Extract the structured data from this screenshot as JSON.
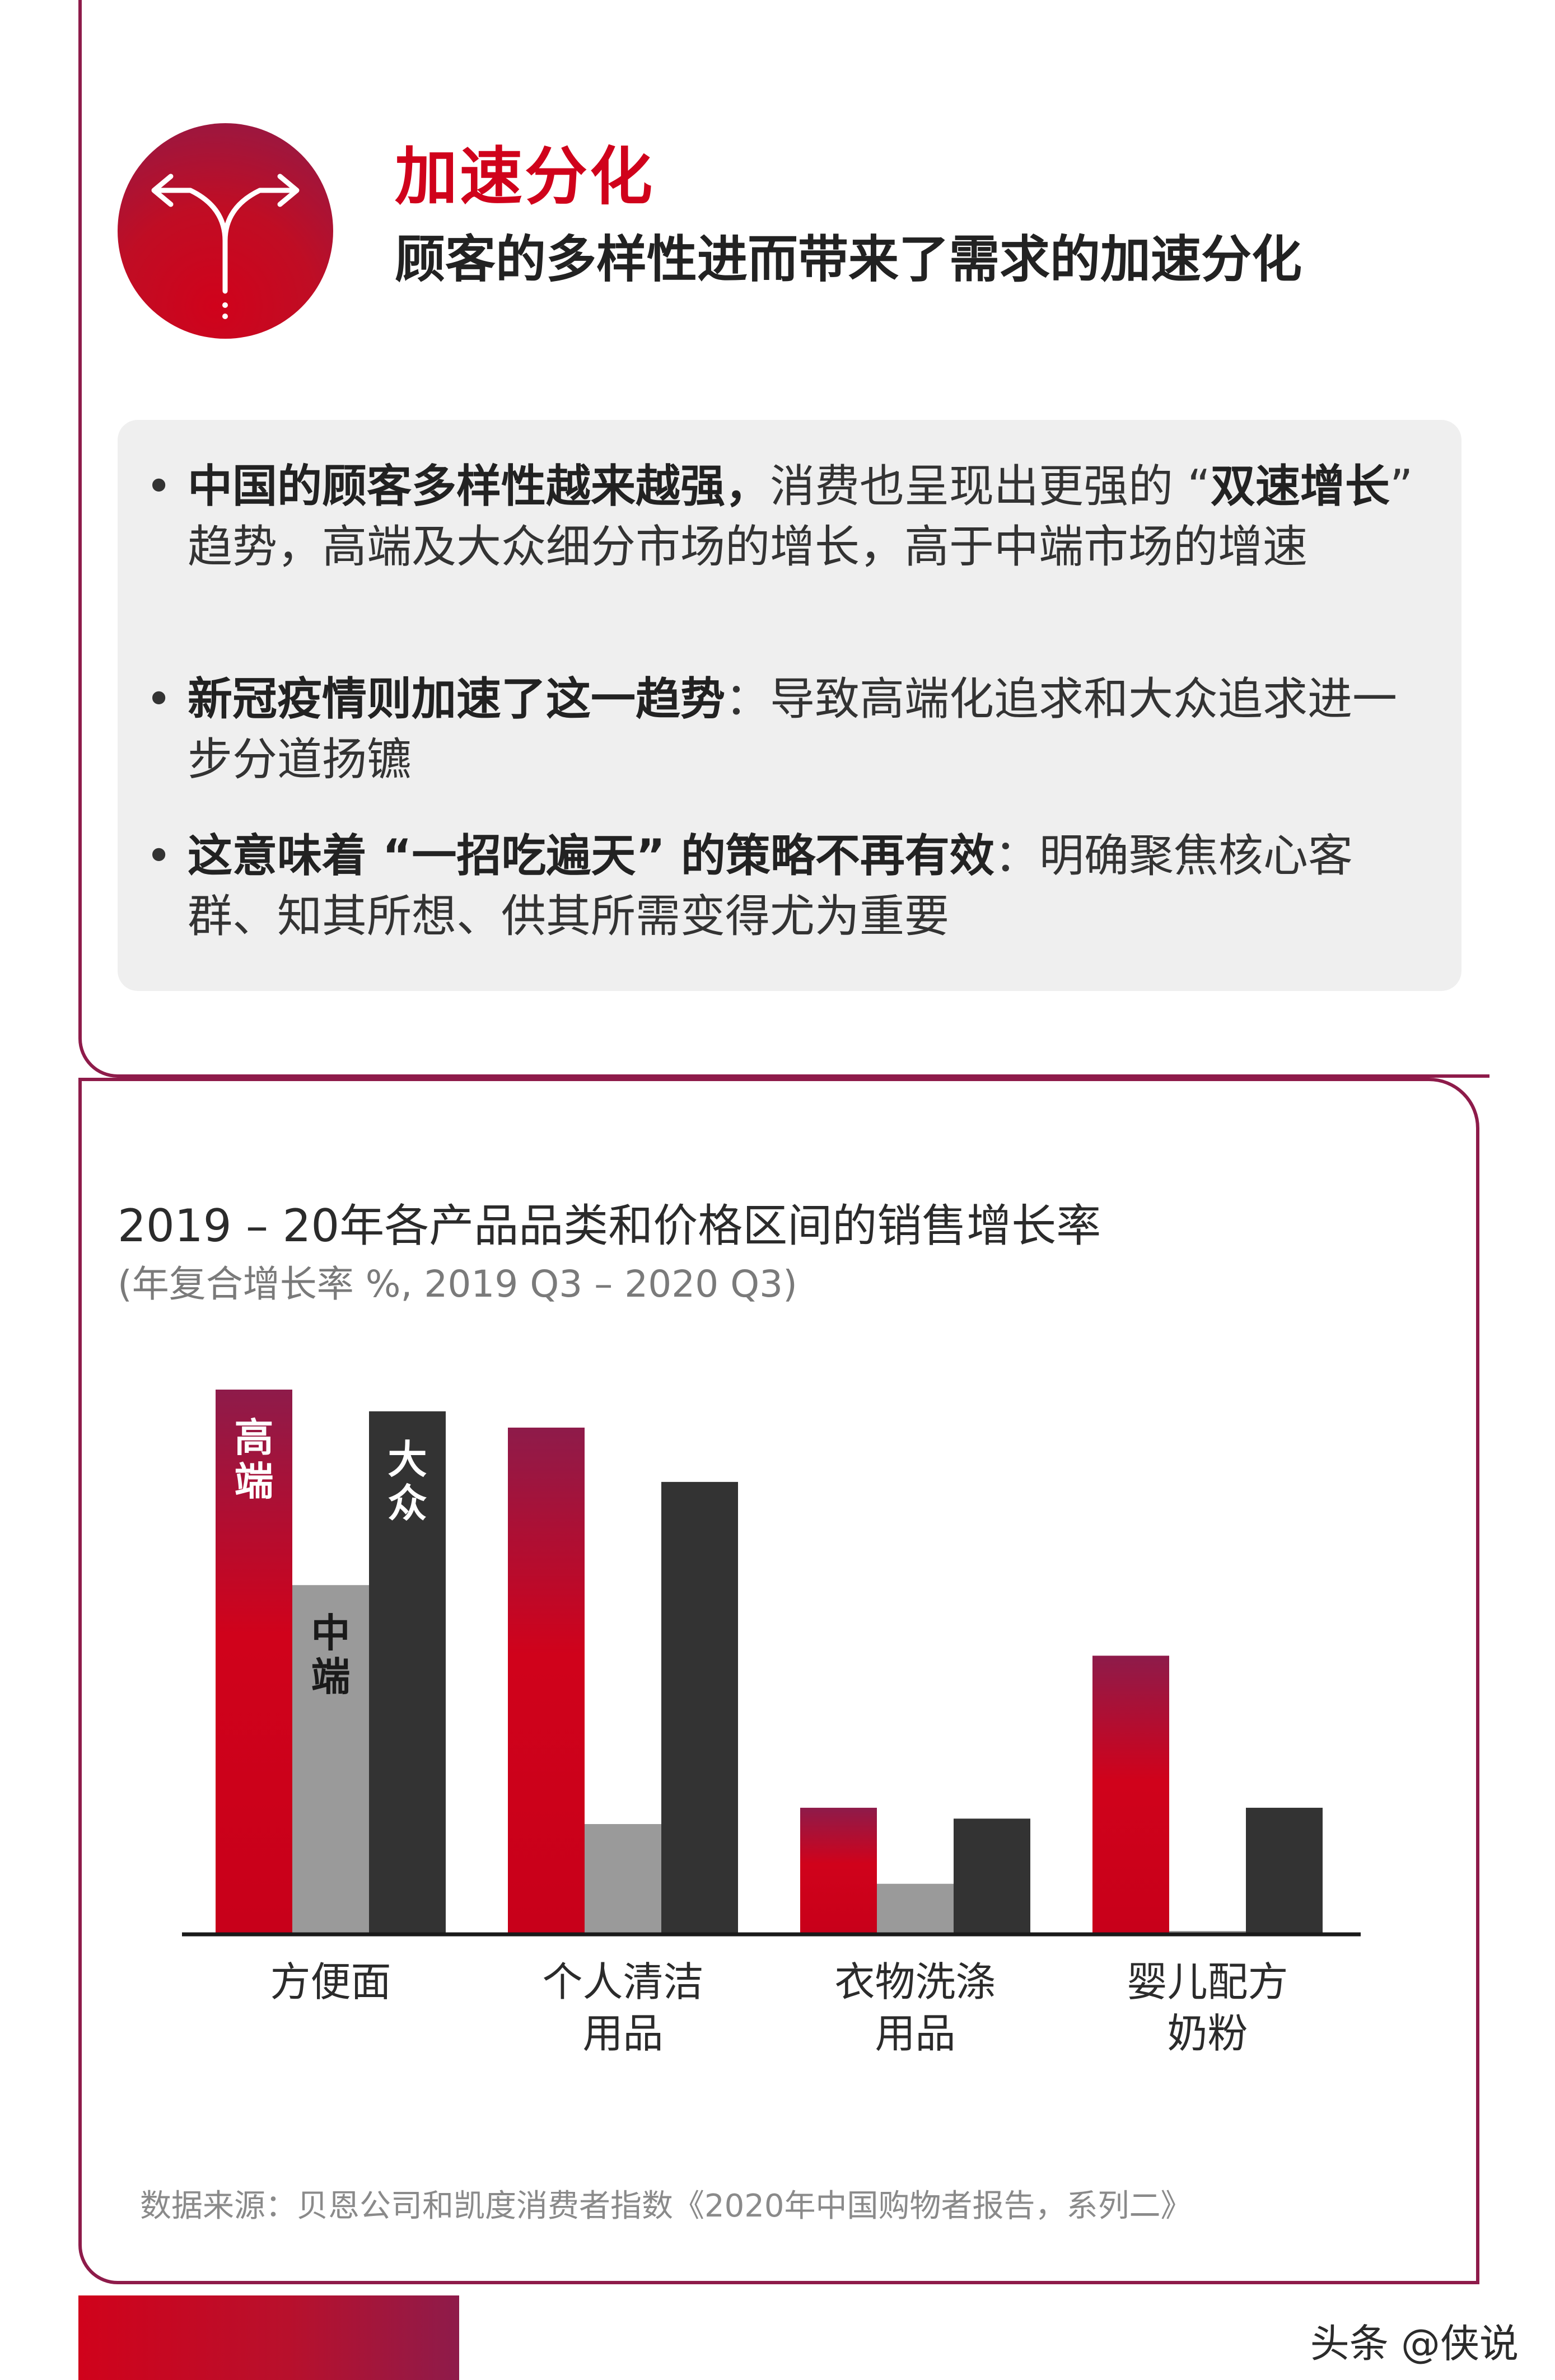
{
  "header": {
    "icon": "split-arrows-icon",
    "title": "加速分化",
    "subtitle": "顾客的多样性进而带来了需求的加速分化"
  },
  "bullets": [
    {
      "bold": "中国的顾客多样性越来越强，",
      "text": "消费也呈现出更强的 “",
      "bold2": "双速增长",
      "text2": "” 趋势，高端及大众细分市场的增长，高于中端市场的增速"
    },
    {
      "bold": "新冠疫情则加速了这一趋势",
      "text": "：导致高端化追求和大众追求进一步分道扬镳",
      "bold2": "",
      "text2": ""
    },
    {
      "bold": "这意味着 “一招吃遍天” 的策略不再有效",
      "text": "：明确聚焦核心客群、知其所想、供其所需变得尤为重要",
      "bold2": "",
      "text2": ""
    }
  ],
  "chart_data": {
    "type": "bar",
    "title": "2019 – 20年各产品品类和价格区间的销售增长率",
    "subtitle": "(年复合增长率 %, 2019 Q3 – 2020 Q3)",
    "categories": [
      "方便面",
      "个人清洁\n用品",
      "衣物洗涤\n用品",
      "婴儿配方\n奶粉"
    ],
    "category_lines": [
      [
        "方便面"
      ],
      [
        "个人清洁",
        "用品"
      ],
      [
        "衣物洗涤",
        "用品"
      ],
      [
        "婴儿配方",
        "奶粉"
      ]
    ],
    "series": [
      {
        "name": "高端",
        "values": [
          100,
          93,
          23,
          51
        ],
        "color_top": "#8e1b4a",
        "color_bottom": "#d0021b"
      },
      {
        "name": "中端",
        "values": [
          64,
          20,
          9,
          0.3
        ],
        "color": "#9a9a9a"
      },
      {
        "name": "大众",
        "values": [
          96,
          83,
          21,
          23
        ],
        "color": "#333333"
      }
    ],
    "ylim": [
      0,
      100
    ],
    "grid": false,
    "legend": "inside first bars"
  },
  "source": "数据来源：贝恩公司和凯度消费者指数《2020年中国购物者报告，系列二》",
  "watermark": "头条 @侠说",
  "colors": {
    "accent": "#d0021b",
    "frame": "#8e1b4a",
    "box": "#efefef"
  }
}
